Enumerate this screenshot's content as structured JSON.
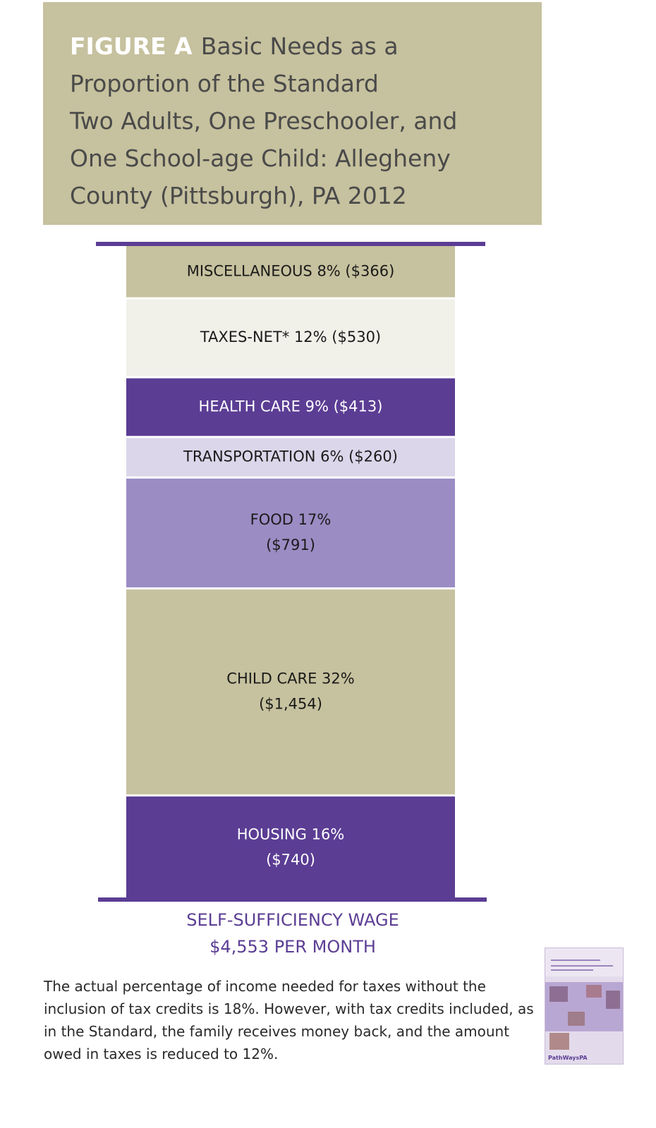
{
  "title": {
    "label": "FIGURE A",
    "lines": [
      "Basic Needs as a",
      "Proportion of the Standard",
      "Two Adults, One Preschooler, and",
      "One School-age Child: Allegheny",
      "County (Pittsburgh), PA 2012"
    ]
  },
  "chart_data": {
    "type": "bar",
    "stacked": true,
    "segments": [
      {
        "category": "HOUSING",
        "percent": 16,
        "value": 740,
        "label_lines": [
          "HOUSING 16%",
          "($740)"
        ],
        "color": "#5b3d94",
        "text_color": "#ffffff"
      },
      {
        "category": "CHILD CARE",
        "percent": 32,
        "value": 1454,
        "label_lines": [
          "CHILD CARE 32%",
          "($1,454)"
        ],
        "color": "#c6c19e",
        "text_color": "#1a1a1a"
      },
      {
        "category": "FOOD",
        "percent": 17,
        "value": 791,
        "label_lines": [
          "FOOD 17%",
          "($791)"
        ],
        "color": "#9b8cc4",
        "text_color": "#1a1a1a"
      },
      {
        "category": "TRANSPORTATION",
        "percent": 6,
        "value": 260,
        "label_lines": [
          "TRANSPORTATION 6% ($260)"
        ],
        "color": "#dcd6ea",
        "text_color": "#1a1a1a"
      },
      {
        "category": "HEALTH CARE",
        "percent": 9,
        "value": 413,
        "label_lines": [
          "HEALTH CARE 9% ($413)"
        ],
        "color": "#5b3d94",
        "text_color": "#ffffff"
      },
      {
        "category": "TAXES-NET*",
        "percent": 12,
        "value": 530,
        "label_lines": [
          "TAXES-NET*  12% ($530)"
        ],
        "color": "#f1f0e9",
        "text_color": "#1a1a1a"
      },
      {
        "category": "MISCELLANEOUS",
        "percent": 8,
        "value": 366,
        "label_lines": [
          "MISCELLANEOUS 8% ($366)"
        ],
        "color": "#c6c19e",
        "text_color": "#1a1a1a"
      }
    ],
    "total": 4553
  },
  "wage": {
    "line1": "SELF-SUFFICIENCY WAGE",
    "line2": "$4,553 PER MONTH"
  },
  "footnote": "The actual percentage of income needed for taxes without the inclusion of tax credits is 18%. However, with tax credits included, as in the Standard, the family receives money back, and the amount owed in taxes is reduced to 12%.",
  "colors": {
    "accent": "#5b3d94",
    "title_bg": "#c6c19e"
  },
  "cover": {
    "logo": "PathWaysPA"
  }
}
